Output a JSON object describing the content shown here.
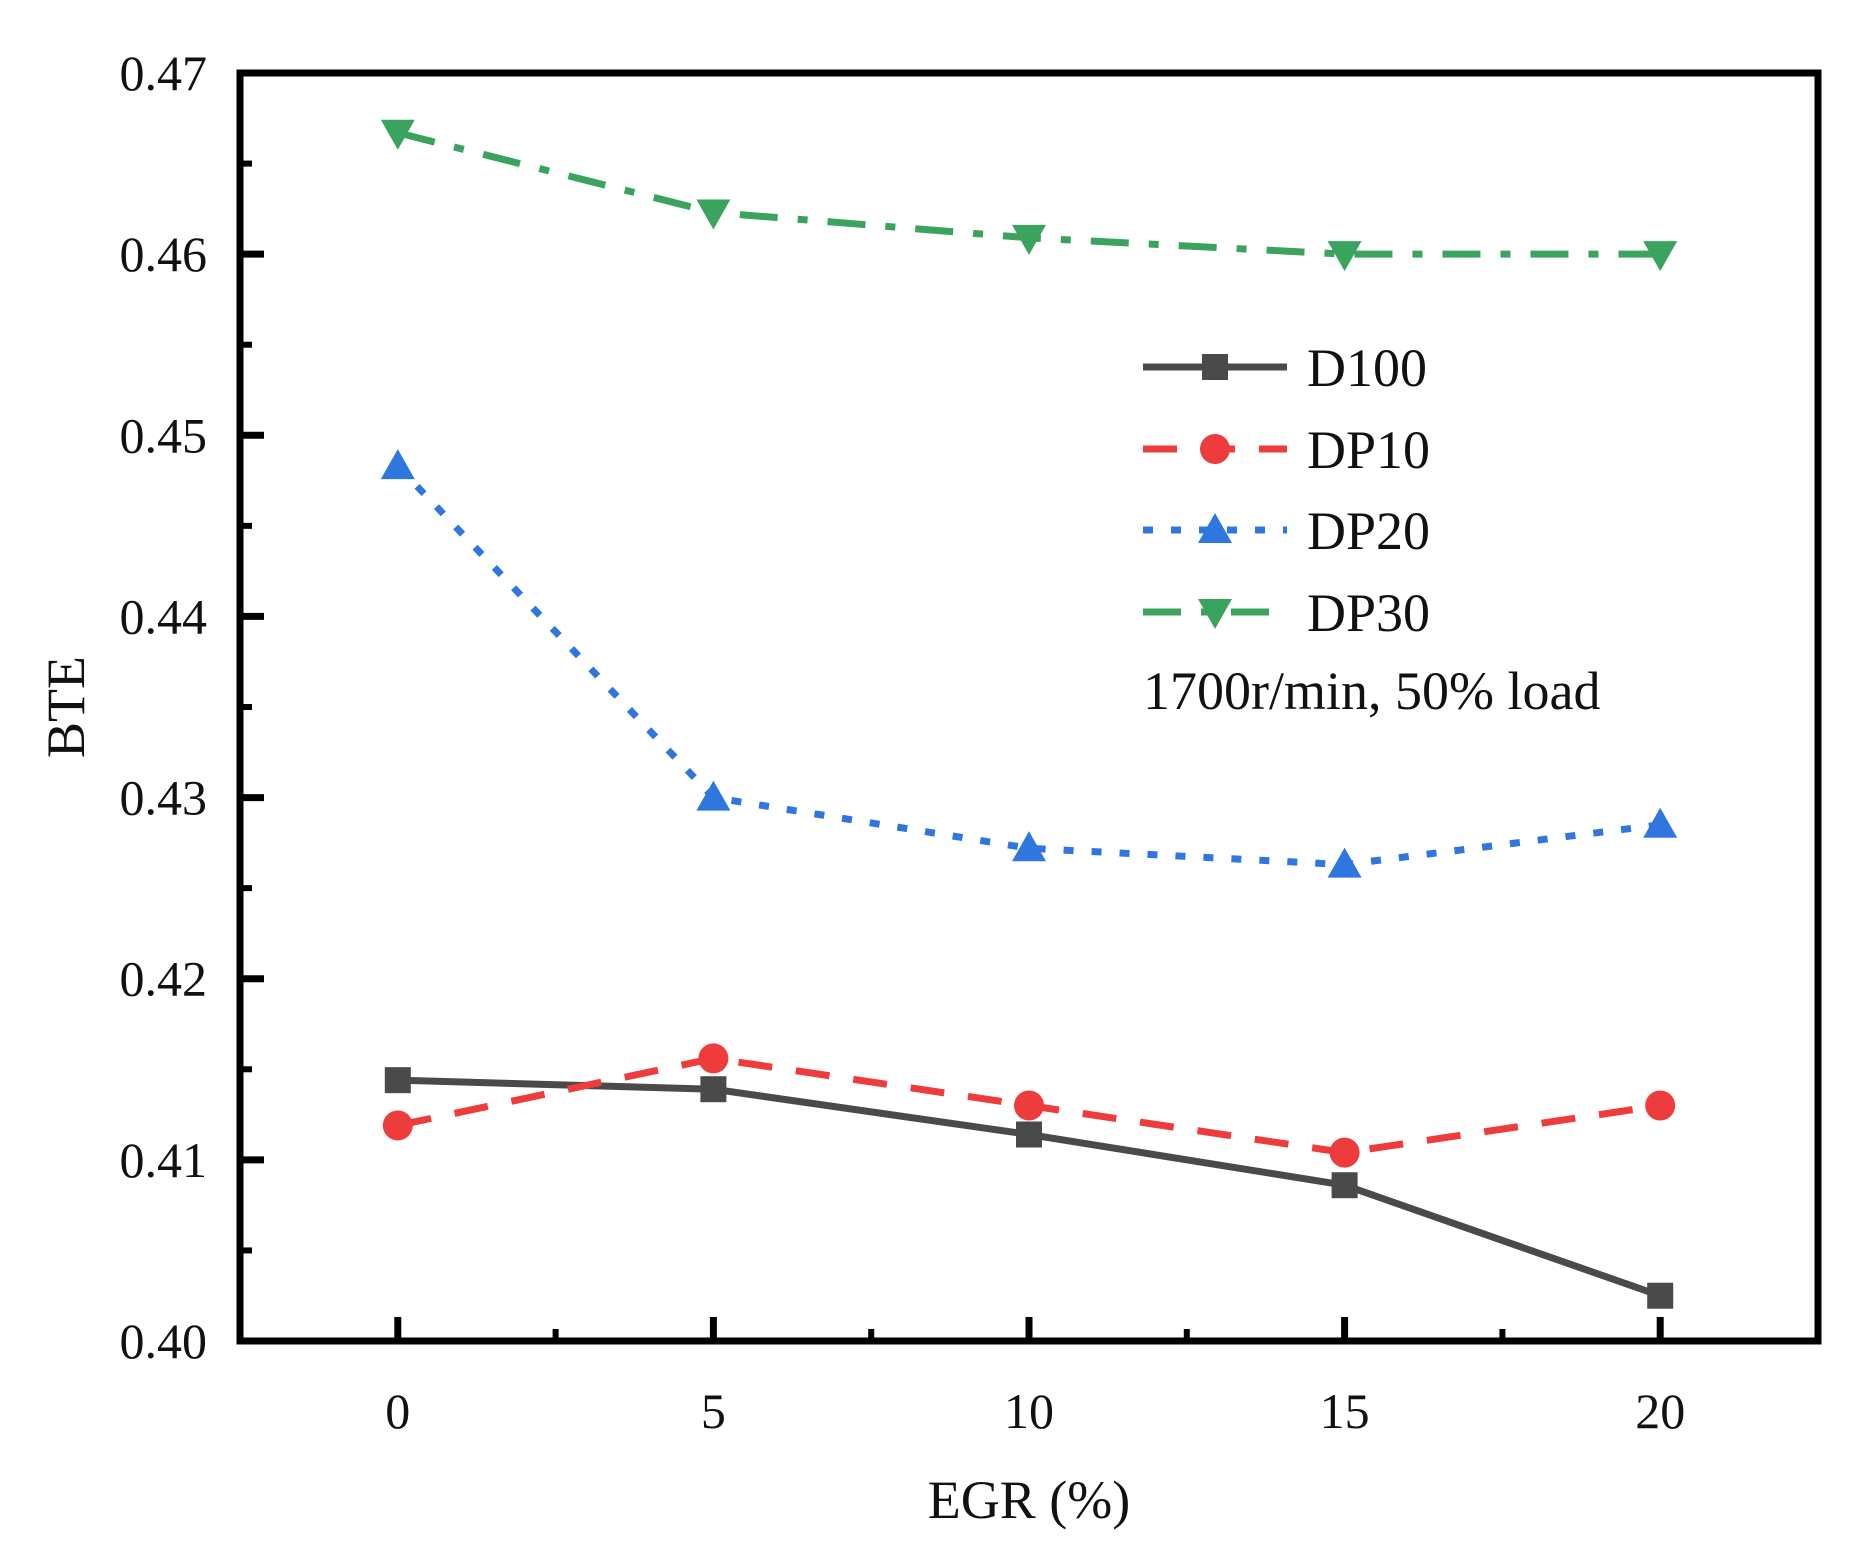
{
  "chart_data": {
    "type": "line",
    "title": "",
    "xlabel": "EGR (%)",
    "ylabel": "BTE",
    "annotation": "1700r/min, 50% load",
    "x": [
      0,
      5,
      10,
      15,
      20
    ],
    "xlim": [
      -2.5,
      22.5
    ],
    "ylim": [
      0.4,
      0.47
    ],
    "xticks": [
      0,
      5,
      10,
      15,
      20
    ],
    "xtick_labels": [
      "0",
      "5",
      "10",
      "15",
      "20"
    ],
    "yticks": [
      0.4,
      0.41,
      0.42,
      0.43,
      0.44,
      0.45,
      0.46,
      0.47
    ],
    "ytick_labels": [
      "0.40",
      "0.41",
      "0.42",
      "0.43",
      "0.44",
      "0.45",
      "0.46",
      "0.47"
    ],
    "grid": false,
    "legend_position": "right",
    "series": [
      {
        "name": "D100",
        "values": [
          0.4144,
          0.4139,
          0.4114,
          0.4086,
          0.4025
        ],
        "color": "#4a4a4a",
        "marker": "square",
        "line_style": "solid"
      },
      {
        "name": "DP10",
        "values": [
          0.4119,
          0.4156,
          0.413,
          0.4104,
          0.413
        ],
        "color": "#ee3b3b",
        "marker": "circle",
        "line_style": "dash"
      },
      {
        "name": "DP20",
        "values": [
          0.4483,
          0.43,
          0.4272,
          0.4263,
          0.4285
        ],
        "color": "#2f76df",
        "marker": "triangle-up",
        "line_style": "dot"
      },
      {
        "name": "DP30",
        "values": [
          0.4667,
          0.4623,
          0.4609,
          0.46,
          0.46
        ],
        "color": "#3aa45f",
        "marker": "triangle-down",
        "line_style": "dashdot"
      }
    ]
  }
}
